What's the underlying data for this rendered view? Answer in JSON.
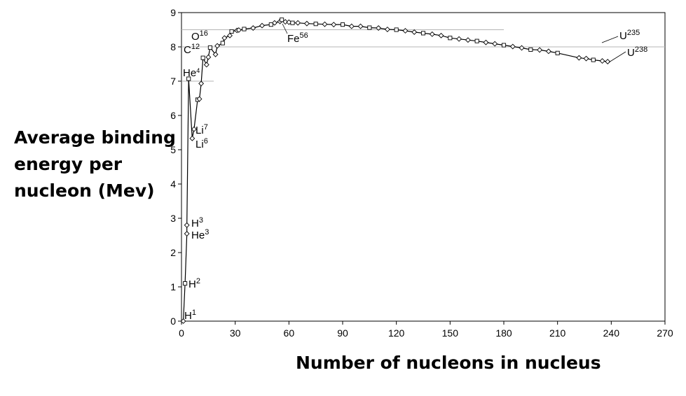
{
  "chart_data": {
    "type": "line",
    "title": "",
    "xlabel": "Number of nucleons in nucleus",
    "ylabel_lines": [
      "Average binding",
      "energy per",
      "nucleon (Mev)"
    ],
    "xlim": [
      0,
      270
    ],
    "ylim": [
      0,
      9
    ],
    "xticks": [
      "0",
      "30",
      "60",
      "90",
      "120",
      "150",
      "180",
      "210",
      "240",
      "270"
    ],
    "yticks": [
      "0",
      "1",
      "2",
      "3",
      "4",
      "5",
      "6",
      "7",
      "8",
      "9"
    ],
    "reference_lines": [
      {
        "y": 8.5,
        "x_end": 180
      },
      {
        "y": 8.0,
        "x_end": 270
      },
      {
        "y": 7.0,
        "x_end": 18
      }
    ],
    "series": [
      {
        "x": [
          1,
          2,
          3,
          3,
          4,
          6,
          7,
          9,
          10,
          11,
          12,
          14,
          15,
          16,
          19,
          20,
          23,
          24,
          27,
          28,
          31,
          32,
          35,
          40,
          45,
          50,
          52,
          55,
          56,
          58,
          60,
          62,
          65,
          70,
          75,
          80,
          85,
          90,
          95,
          100,
          105,
          110,
          115,
          120,
          125,
          130,
          135,
          140,
          145,
          150,
          155,
          160,
          165,
          170,
          175,
          180,
          185,
          190,
          195,
          200,
          205,
          210,
          222,
          226,
          230,
          235,
          238
        ],
        "y": [
          0,
          1.1,
          2.55,
          2.8,
          7.07,
          5.33,
          5.6,
          6.46,
          6.48,
          6.93,
          7.68,
          7.48,
          7.7,
          7.98,
          7.78,
          8.03,
          8.11,
          8.26,
          8.33,
          8.45,
          8.48,
          8.49,
          8.52,
          8.55,
          8.62,
          8.65,
          8.7,
          8.74,
          8.79,
          8.73,
          8.72,
          8.7,
          8.7,
          8.68,
          8.67,
          8.66,
          8.65,
          8.65,
          8.6,
          8.6,
          8.56,
          8.55,
          8.51,
          8.5,
          8.47,
          8.43,
          8.4,
          8.37,
          8.33,
          8.26,
          8.23,
          8.2,
          8.17,
          8.13,
          8.09,
          8.05,
          8.01,
          7.97,
          7.92,
          7.91,
          7.87,
          7.82,
          7.68,
          7.66,
          7.62,
          7.59,
          7.57
        ]
      }
    ],
    "annotations": [
      {
        "element": "H",
        "mass": "1",
        "x": 1
      },
      {
        "element": "H",
        "mass": "2",
        "x": 2
      },
      {
        "element": "H",
        "mass": "3",
        "x": 3
      },
      {
        "element": "He",
        "mass": "3",
        "x": 3
      },
      {
        "element": "Li",
        "mass": "7",
        "x": 7
      },
      {
        "element": "Li",
        "mass": "6",
        "x": 6
      },
      {
        "element": "He",
        "mass": "4",
        "x": 4
      },
      {
        "element": "C",
        "mass": "12",
        "x": 12
      },
      {
        "element": "O",
        "mass": "16",
        "x": 16
      },
      {
        "element": "Fe",
        "mass": "56",
        "x": 56
      },
      {
        "element": "U",
        "mass": "235",
        "x": 235
      },
      {
        "element": "U",
        "mass": "238",
        "x": 238
      }
    ]
  }
}
